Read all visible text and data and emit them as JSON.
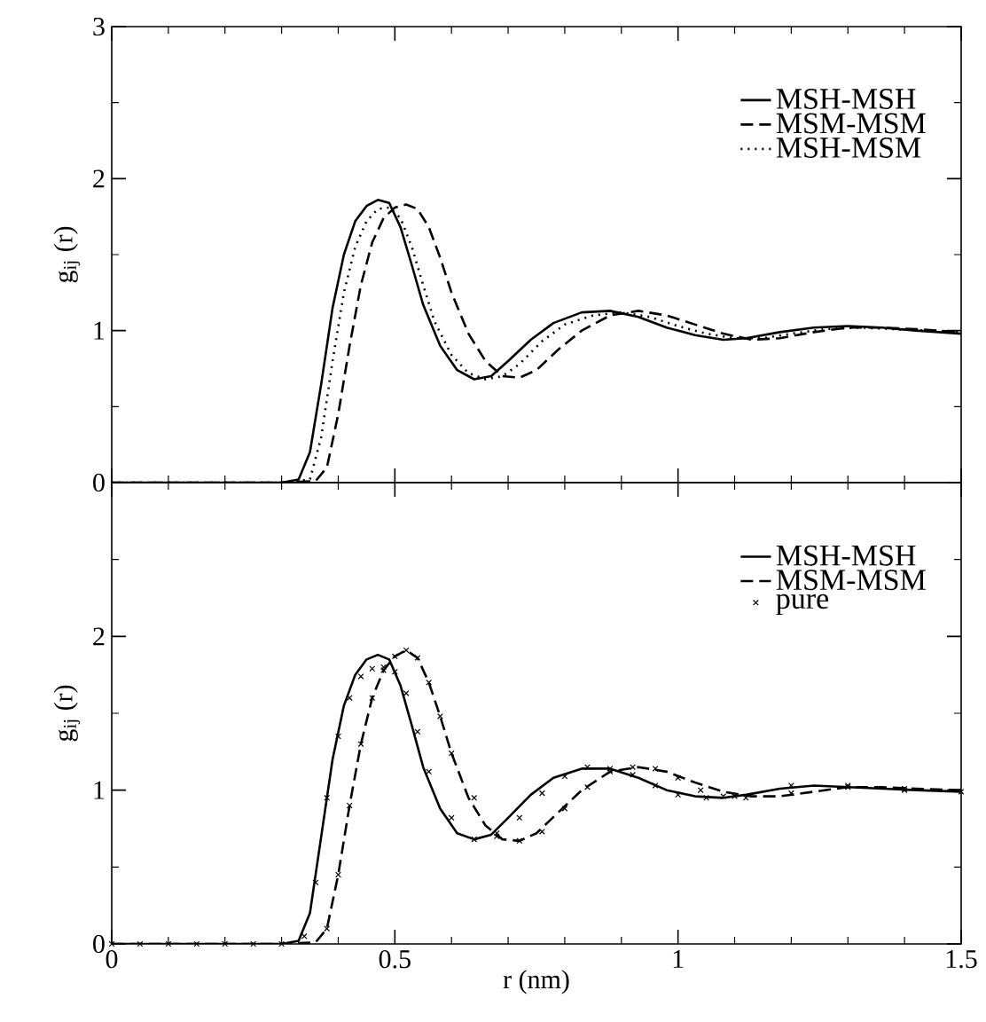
{
  "chart_data": [
    {
      "type": "line",
      "ylabel": "g$_{ij}$ (r)",
      "xlim": [
        0,
        1.5
      ],
      "ylim": [
        0,
        3
      ],
      "tick_labels": "y",
      "legend": "top right",
      "marker": "none",
      "xticks": [
        0,
        {
          "value": 0.1,
          "label": null
        },
        {
          "value": 0.2,
          "label": null
        },
        {
          "value": 0.3,
          "label": null
        },
        {
          "value": 0.4,
          "label": null
        },
        0.5,
        {
          "value": 0.6,
          "label": null
        },
        {
          "value": 0.7,
          "label": null
        },
        {
          "value": 0.8,
          "label": null
        },
        {
          "value": 0.9,
          "label": null
        },
        1,
        {
          "value": 1.1,
          "label": null
        },
        {
          "value": 1.2,
          "label": null
        },
        {
          "value": 1.3,
          "label": null
        },
        {
          "value": 1.4,
          "label": null
        },
        1.5
      ],
      "yticks": [
        0,
        {
          "value": 0.5,
          "label": null
        },
        1,
        {
          "value": 1.5,
          "label": null
        },
        2,
        {
          "value": 2.5,
          "label": null
        },
        3
      ],
      "series": [
        {
          "name": "MSH-MSH",
          "color": "#000000",
          "line_style": "solid",
          "x": [
            0,
            0.1,
            0.2,
            0.3,
            0.33,
            0.35,
            0.37,
            0.39,
            0.41,
            0.43,
            0.45,
            0.47,
            0.49,
            0.51,
            0.53,
            0.55,
            0.58,
            0.61,
            0.64,
            0.67,
            0.7,
            0.74,
            0.78,
            0.83,
            0.88,
            0.93,
            0.98,
            1.03,
            1.08,
            1.12,
            1.18,
            1.24,
            1.3,
            1.36,
            1.42,
            1.5
          ],
          "values": [
            0,
            0,
            0,
            0,
            0.02,
            0.2,
            0.65,
            1.15,
            1.5,
            1.72,
            1.82,
            1.86,
            1.84,
            1.68,
            1.43,
            1.17,
            0.9,
            0.74,
            0.68,
            0.7,
            0.8,
            0.94,
            1.05,
            1.12,
            1.13,
            1.09,
            1.02,
            0.97,
            0.94,
            0.95,
            0.99,
            1.02,
            1.03,
            1.02,
            1.0,
            0.98
          ]
        },
        {
          "name": "MSM-MSM",
          "color": "#000000",
          "line_style": "dashed",
          "x": [
            0,
            0.1,
            0.2,
            0.3,
            0.36,
            0.38,
            0.4,
            0.42,
            0.44,
            0.46,
            0.48,
            0.5,
            0.52,
            0.54,
            0.56,
            0.58,
            0.6,
            0.63,
            0.66,
            0.69,
            0.72,
            0.75,
            0.79,
            0.83,
            0.88,
            0.93,
            0.98,
            1.03,
            1.08,
            1.13,
            1.18,
            1.24,
            1.3,
            1.36,
            1.42,
            1.5
          ],
          "values": [
            0,
            0,
            0,
            0,
            0.01,
            0.1,
            0.45,
            0.9,
            1.3,
            1.58,
            1.74,
            1.81,
            1.83,
            1.8,
            1.68,
            1.48,
            1.25,
            0.98,
            0.8,
            0.7,
            0.69,
            0.74,
            0.88,
            1.0,
            1.1,
            1.13,
            1.1,
            1.04,
            0.98,
            0.94,
            0.95,
            0.99,
            1.02,
            1.02,
            1.01,
            0.99
          ]
        },
        {
          "name": "MSH-MSM",
          "color": "#000000",
          "line_style": "dotted",
          "x": [
            0,
            0.1,
            0.2,
            0.3,
            0.35,
            0.37,
            0.39,
            0.41,
            0.43,
            0.45,
            0.47,
            0.49,
            0.51,
            0.53,
            0.55,
            0.57,
            0.6,
            0.63,
            0.66,
            0.69,
            0.72,
            0.76,
            0.8,
            0.85,
            0.9,
            0.95,
            1.0,
            1.05,
            1.1,
            1.15,
            1.2,
            1.26,
            1.32,
            1.38,
            1.44,
            1.5
          ],
          "values": [
            0,
            0,
            0,
            0,
            0.02,
            0.3,
            0.8,
            1.25,
            1.55,
            1.72,
            1.8,
            1.81,
            1.74,
            1.55,
            1.3,
            1.06,
            0.84,
            0.72,
            0.68,
            0.7,
            0.78,
            0.93,
            1.04,
            1.1,
            1.12,
            1.09,
            1.03,
            0.98,
            0.95,
            0.95,
            0.98,
            1.01,
            1.02,
            1.01,
            1.0,
            0.99
          ]
        }
      ]
    },
    {
      "type": "line",
      "ylabel": "g$_{ij}$ (r)",
      "xlabel": "r (nm)",
      "xlim": [
        0,
        1.5
      ],
      "ylim": [
        0,
        3
      ],
      "legend": "top right",
      "marker": "none",
      "xticks": [
        0,
        {
          "value": 0.1,
          "label": null
        },
        {
          "value": 0.2,
          "label": null
        },
        {
          "value": 0.3,
          "label": null
        },
        {
          "value": 0.4,
          "label": null
        },
        0.5,
        {
          "value": 0.6,
          "label": null
        },
        {
          "value": 0.7,
          "label": null
        },
        {
          "value": 0.8,
          "label": null
        },
        {
          "value": 0.9,
          "label": null
        },
        1,
        {
          "value": 1.1,
          "label": null
        },
        {
          "value": 1.2,
          "label": null
        },
        {
          "value": 1.3,
          "label": null
        },
        {
          "value": 1.4,
          "label": null
        },
        1.5
      ],
      "yticks": [
        0,
        {
          "value": 0.5,
          "label": null
        },
        1,
        {
          "value": 1.5,
          "label": null
        },
        2,
        {
          "value": 2.5,
          "label": null
        },
        {
          "value": 3,
          "label": null
        }
      ],
      "series": [
        {
          "name": "MSH-MSH",
          "color": "#000000",
          "line_style": "solid",
          "x": [
            0,
            0.1,
            0.2,
            0.3,
            0.33,
            0.35,
            0.37,
            0.39,
            0.41,
            0.43,
            0.45,
            0.47,
            0.49,
            0.51,
            0.53,
            0.55,
            0.58,
            0.61,
            0.64,
            0.67,
            0.7,
            0.74,
            0.78,
            0.83,
            0.88,
            0.93,
            0.98,
            1.03,
            1.08,
            1.12,
            1.18,
            1.24,
            1.3,
            1.36,
            1.42,
            1.5
          ],
          "values": [
            0,
            0,
            0,
            0,
            0.02,
            0.2,
            0.7,
            1.2,
            1.55,
            1.75,
            1.85,
            1.88,
            1.85,
            1.68,
            1.42,
            1.15,
            0.88,
            0.72,
            0.68,
            0.71,
            0.82,
            0.97,
            1.08,
            1.14,
            1.14,
            1.08,
            1.0,
            0.96,
            0.95,
            0.97,
            1.01,
            1.03,
            1.02,
            1.01,
            1.0,
            0.99
          ]
        },
        {
          "name": "MSM-MSM",
          "color": "#000000",
          "line_style": "dashed",
          "x": [
            0,
            0.1,
            0.2,
            0.3,
            0.36,
            0.38,
            0.4,
            0.42,
            0.44,
            0.46,
            0.48,
            0.5,
            0.52,
            0.54,
            0.56,
            0.58,
            0.6,
            0.63,
            0.66,
            0.69,
            0.72,
            0.75,
            0.79,
            0.83,
            0.88,
            0.93,
            0.98,
            1.03,
            1.08,
            1.13,
            1.18,
            1.24,
            1.3,
            1.36,
            1.42,
            1.5
          ],
          "values": [
            0,
            0,
            0,
            0,
            0.01,
            0.1,
            0.45,
            0.9,
            1.3,
            1.6,
            1.78,
            1.87,
            1.91,
            1.86,
            1.7,
            1.48,
            1.24,
            0.95,
            0.77,
            0.68,
            0.67,
            0.72,
            0.86,
            1.0,
            1.12,
            1.15,
            1.12,
            1.05,
            0.99,
            0.96,
            0.96,
            0.99,
            1.02,
            1.02,
            1.01,
            1.0
          ]
        },
        {
          "name": "pure",
          "type": "scatter",
          "marker": "cross",
          "color": "#000000",
          "x": [
            0,
            0.05,
            0.1,
            0.15,
            0.2,
            0.25,
            0.3,
            0.34,
            0.36,
            0.38,
            0.4,
            0.42,
            0.44,
            0.46,
            0.48,
            0.5,
            0.52,
            0.54,
            0.56,
            0.6,
            0.64,
            0.68,
            0.72,
            0.76,
            0.8,
            0.84,
            0.88,
            0.92,
            0.96,
            1.0,
            1.05,
            1.1,
            1.2,
            1.3,
            1.4,
            1.5,
            0.38,
            0.4,
            0.42,
            0.44,
            0.46,
            0.48,
            0.5,
            0.52,
            0.54,
            0.56,
            0.58,
            0.6,
            0.64,
            0.68,
            0.72,
            0.76,
            0.8,
            0.84,
            0.88,
            0.92,
            0.96,
            1.0,
            1.04,
            1.08,
            1.12,
            1.2,
            1.3,
            1.4
          ],
          "values": [
            0,
            0,
            0,
            0,
            0,
            0,
            0,
            0.05,
            0.4,
            0.95,
            1.35,
            1.6,
            1.74,
            1.79,
            1.8,
            1.77,
            1.63,
            1.38,
            1.12,
            0.82,
            0.68,
            0.7,
            0.82,
            0.98,
            1.09,
            1.15,
            1.14,
            1.1,
            1.03,
            0.97,
            0.95,
            0.96,
            1.03,
            1.02,
            1.0,
            0.99,
            0.1,
            0.45,
            0.9,
            1.3,
            1.6,
            1.78,
            1.87,
            1.91,
            1.86,
            1.7,
            1.48,
            1.24,
            0.95,
            0.72,
            0.67,
            0.73,
            0.88,
            1.02,
            1.12,
            1.15,
            1.14,
            1.08,
            1.0,
            0.96,
            0.95,
            0.98,
            1.03,
            1.01
          ]
        }
      ]
    }
  ]
}
